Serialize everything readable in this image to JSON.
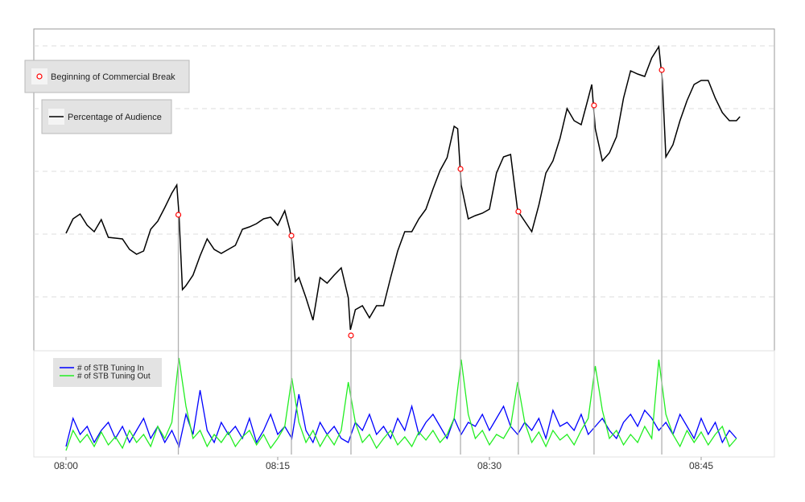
{
  "chart_data": [
    {
      "type": "line",
      "xlim": [
        -2.28,
        50.19
      ],
      "ylim": [
        11,
        411
      ],
      "yticks": [
        78,
        156,
        234,
        312,
        390
      ],
      "grid": true,
      "legend": "top-left",
      "x": [
        0,
        0.5,
        1,
        1.5,
        2,
        2.5,
        3,
        3.5,
        4,
        4.5,
        5,
        5.5,
        6,
        6.5,
        7,
        7.5,
        7.85,
        8,
        8.25,
        8.5,
        9,
        9.5,
        10,
        10.5,
        11,
        11.5,
        12,
        12.5,
        13,
        13.5,
        14,
        14.5,
        15,
        15.5,
        15.85,
        16,
        16.25,
        16.5,
        17,
        17.5,
        18,
        18.5,
        19,
        19.5,
        20,
        20.15,
        20.5,
        21,
        21.5,
        22,
        22.5,
        23,
        23.5,
        24,
        24.5,
        25,
        25.5,
        26,
        26.5,
        27,
        27.5,
        27.75,
        28,
        28.5,
        29,
        29.5,
        30,
        30.5,
        31,
        31.5,
        32,
        32.5,
        33,
        33.5,
        34,
        34.5,
        35,
        35.5,
        36,
        36.5,
        37,
        37.25,
        37.5,
        38,
        38.5,
        39,
        39.5,
        40,
        40.5,
        41,
        41.5,
        42,
        42.25,
        42.5,
        43,
        43.5,
        44,
        44.5,
        45,
        45.5,
        46,
        46.5,
        47,
        47.5,
        47.75
      ],
      "series": [
        {
          "name": "Percentage of Audience",
          "color": "#000000",
          "values": [
            157,
            175,
            181,
            167,
            159,
            174,
            152,
            151,
            150,
            137,
            131,
            135,
            162,
            172,
            189,
            207,
            217,
            182,
            87,
            92,
            105,
            129,
            150,
            137,
            132,
            137,
            142,
            162,
            165,
            169,
            175,
            177,
            167,
            185,
            162,
            147,
            97,
            102,
            77,
            49,
            102,
            95,
            105,
            114,
            77,
            37,
            62,
            67,
            52,
            67,
            67,
            102,
            135,
            159,
            159,
            175,
            187,
            212,
            235,
            251,
            290,
            287,
            217,
            175,
            179,
            182,
            187,
            232,
            252,
            255,
            185,
            172,
            159,
            192,
            232,
            247,
            275,
            312,
            297,
            292,
            325,
            342,
            287,
            247,
            257,
            277,
            325,
            359,
            355,
            352,
            375,
            389,
            347,
            252,
            267,
            297,
            322,
            342,
            347,
            347,
            325,
            307,
            297,
            297,
            302
          ]
        },
        {
          "name": "Beginning of Commercial Break",
          "color": "#ff0000",
          "marker": "circle",
          "x": [
            7.96,
            15.97,
            20.19,
            27.95,
            32.05,
            37.41,
            42.21
          ],
          "values": [
            180,
            154,
            30,
            237,
            184,
            316,
            360
          ]
        }
      ]
    },
    {
      "type": "line",
      "xlim": [
        -2.28,
        50.19
      ],
      "ylim": [
        -3,
        129
      ],
      "legend": "top-left",
      "xticks": [
        {
          "value": 0,
          "label": "08:00"
        },
        {
          "value": 15,
          "label": "08:15"
        },
        {
          "value": 30,
          "label": "08:30"
        },
        {
          "value": 45,
          "label": "08:45"
        }
      ],
      "x": [
        0,
        0.5,
        1,
        1.5,
        2,
        2.5,
        3,
        3.5,
        4,
        4.5,
        5,
        5.5,
        6,
        6.5,
        7,
        7.5,
        8,
        8.5,
        9,
        9.5,
        10,
        10.5,
        11,
        11.5,
        12,
        12.5,
        13,
        13.5,
        14,
        14.5,
        15,
        15.5,
        16,
        16.5,
        17,
        17.5,
        18,
        18.5,
        19,
        19.5,
        20,
        20.5,
        21,
        21.5,
        22,
        22.5,
        23,
        23.5,
        24,
        24.5,
        25,
        25.5,
        26,
        26.5,
        27,
        27.5,
        28,
        28.5,
        29,
        29.5,
        30,
        30.5,
        31,
        31.5,
        32,
        32.5,
        33,
        33.5,
        34,
        34.5,
        35,
        35.5,
        36,
        36.5,
        37,
        37.5,
        38,
        38.5,
        39,
        39.5,
        40,
        40.5,
        41,
        41.5,
        42,
        42.5,
        43,
        43.5,
        44,
        44.5,
        45,
        45.5,
        46,
        46.5,
        47,
        47.5
      ],
      "series": [
        {
          "name": "# of STB Tuning In",
          "color": "#0000ff",
          "values": [
            10,
            45,
            25,
            35,
            15,
            30,
            40,
            20,
            35,
            15,
            30,
            45,
            20,
            35,
            15,
            30,
            10,
            50,
            25,
            80,
            30,
            15,
            40,
            25,
            35,
            20,
            45,
            15,
            30,
            50,
            25,
            35,
            20,
            75,
            30,
            15,
            40,
            25,
            35,
            20,
            15,
            40,
            30,
            50,
            25,
            35,
            20,
            45,
            30,
            60,
            25,
            40,
            50,
            35,
            20,
            45,
            25,
            40,
            35,
            50,
            30,
            45,
            60,
            35,
            25,
            40,
            30,
            45,
            20,
            55,
            35,
            40,
            30,
            50,
            25,
            35,
            45,
            30,
            20,
            40,
            50,
            35,
            55,
            45,
            30,
            40,
            25,
            50,
            35,
            20,
            45,
            25,
            40,
            15,
            30,
            20
          ]
        },
        {
          "name": "# of STB Tuning Out",
          "color": "#22ee22",
          "values": [
            5,
            30,
            15,
            25,
            10,
            28,
            12,
            22,
            8,
            30,
            15,
            25,
            10,
            35,
            20,
            40,
            120,
            60,
            20,
            30,
            10,
            25,
            15,
            28,
            10,
            22,
            30,
            12,
            25,
            8,
            20,
            35,
            95,
            40,
            15,
            30,
            10,
            25,
            12,
            30,
            90,
            40,
            15,
            25,
            8,
            20,
            30,
            12,
            22,
            10,
            28,
            18,
            30,
            15,
            25,
            45,
            118,
            50,
            20,
            30,
            12,
            25,
            20,
            35,
            90,
            40,
            15,
            28,
            10,
            30,
            18,
            25,
            12,
            30,
            45,
            110,
            55,
            20,
            30,
            12,
            25,
            15,
            35,
            20,
            118,
            50,
            25,
            10,
            30,
            15,
            28,
            12,
            25,
            35,
            10,
            20
          ]
        }
      ]
    }
  ]
}
